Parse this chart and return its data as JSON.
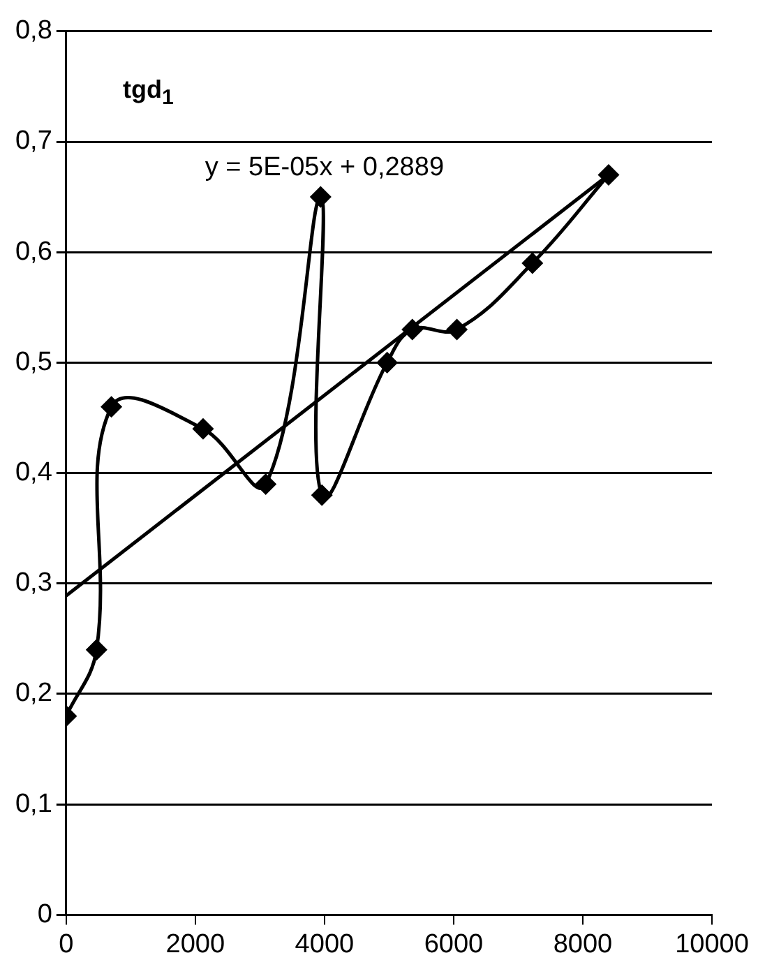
{
  "chart_data": {
    "type": "line",
    "ylabel": "tgd$_{1}$",
    "series": [
      {
        "color": "#000000",
        "marker": "diamond",
        "x": [
          0,
          470,
          700,
          2120,
          3090,
          3940,
          3960,
          4970,
          5360,
          6050,
          7220,
          8400
        ],
        "values": [
          0.18,
          0.24,
          0.46,
          0.44,
          0.39,
          0.65,
          0.38,
          0.5,
          0.53,
          0.53,
          0.59,
          0.67
        ]
      },
      {
        "color": "#000000",
        "marker": "none",
        "x": [
          0,
          8400
        ],
        "values": [
          0.289,
          0.67
        ]
      }
    ],
    "xlim": [
      0,
      10000
    ],
    "xticks": [
      0,
      2000,
      4000,
      6000,
      8000,
      10000
    ],
    "ylim": [
      0,
      0.8
    ],
    "yticks": [
      0,
      {
        "value": 0.1,
        "label": "0,1"
      },
      {
        "value": 0.2,
        "label": "0,2"
      },
      {
        "value": 0.3,
        "label": "0,3"
      },
      {
        "value": 0.4,
        "label": "0,4"
      },
      {
        "value": 0.5,
        "label": "0,5"
      },
      {
        "value": 0.6,
        "label": "0,6"
      },
      {
        "value": 0.7,
        "label": "0,7"
      },
      {
        "value": 0.8,
        "label": "0,8"
      }
    ],
    "grid": "y",
    "legend": false,
    "annotations": [
      "y = 5E-05x + 0,2889"
    ]
  }
}
